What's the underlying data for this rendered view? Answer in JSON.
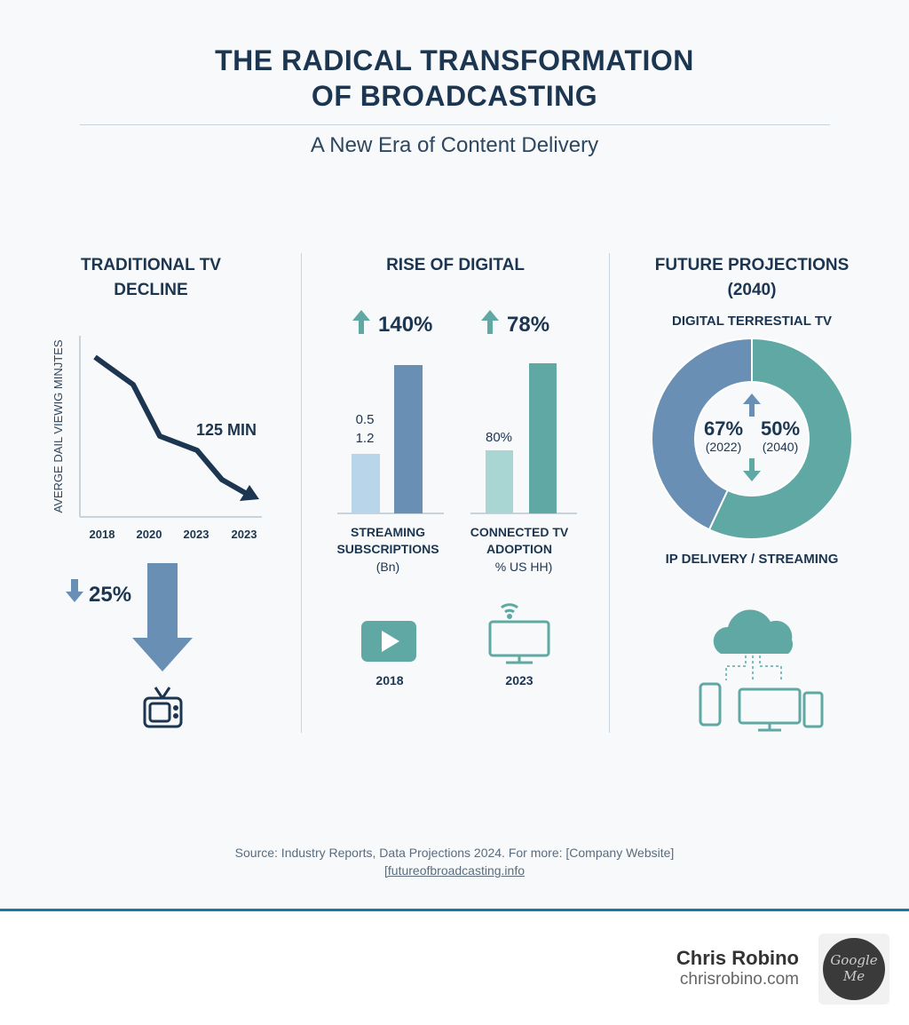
{
  "header": {
    "title_line1": "THE RADICAL TRANSFORMATION",
    "title_line2": "OF BROADCASTING",
    "subtitle": "A New Era of Content Delivery"
  },
  "colors": {
    "navy": "#1c3550",
    "blue": "#6a8fb5",
    "teal": "#5fa8a3",
    "light_blue": "#b8d5ea",
    "light_teal": "#a9d5d3",
    "footer_accent": "#1578a5"
  },
  "traditional": {
    "heading_line1": "TRADITIONAL TV",
    "heading_line2": "DECLINE",
    "decline_value": "25%",
    "decline_icon": "arrow-down-icon",
    "tv_icon": "retro-tv-icon"
  },
  "digital": {
    "heading": "RISE OF DIGITAL",
    "icons": [
      {
        "icon": "play-button-icon",
        "label": "2018"
      },
      {
        "icon": "connected-tv-icon",
        "label": "2023"
      }
    ]
  },
  "future": {
    "heading_line1": "FUTURE PROJECTIONS",
    "heading_line2": "(2040)",
    "icon": "cloud-devices-icon"
  },
  "chart_data": [
    {
      "type": "line",
      "ylabel": "AVERGE DAIL VIEWIG MINJTES",
      "x_tick_labels": [
        "2018",
        "2020",
        "2023",
        "2023"
      ],
      "annotation": "125 MIN",
      "trend": "declining"
    },
    {
      "type": "bar",
      "label_lines": [
        "STREAMING",
        "SUBSCRIPTIONS",
        "(Bn)"
      ],
      "change": "140%",
      "data_labels": [
        "0.5",
        "1.2"
      ],
      "bar_colors": [
        "#b8d5ea",
        "#6a8fb5"
      ]
    },
    {
      "type": "bar",
      "label_lines": [
        "CONNECTED TV",
        "ADOPTION",
        "% US HH)"
      ],
      "change": "78%",
      "data_labels": [
        "80%"
      ],
      "bar_colors": [
        "#a9d5d3",
        "#5fa8a3"
      ]
    },
    {
      "type": "pie",
      "donut": true,
      "top_label": "DIGITAL TERRESTIAL TV",
      "bottom_label": "IP DELIVERY / STREAMING",
      "slices": [
        {
          "color": "#5fa8a3",
          "share": 57
        },
        {
          "color": "#6a8fb5",
          "share": 43
        }
      ],
      "center_values": [
        {
          "value": "67%",
          "year": "(2022)"
        },
        {
          "value": "50%",
          "year": "(2040)"
        }
      ]
    }
  ],
  "source": {
    "line1": "Source: Industry Reports, Data Projections 2024. For more: [Company Website]",
    "link": "[futureofbroadcasting.info"
  },
  "footer": {
    "name": "Chris Robino",
    "site": "chrisrobino.com",
    "badge_line1": "Google",
    "badge_line2": "Me"
  }
}
